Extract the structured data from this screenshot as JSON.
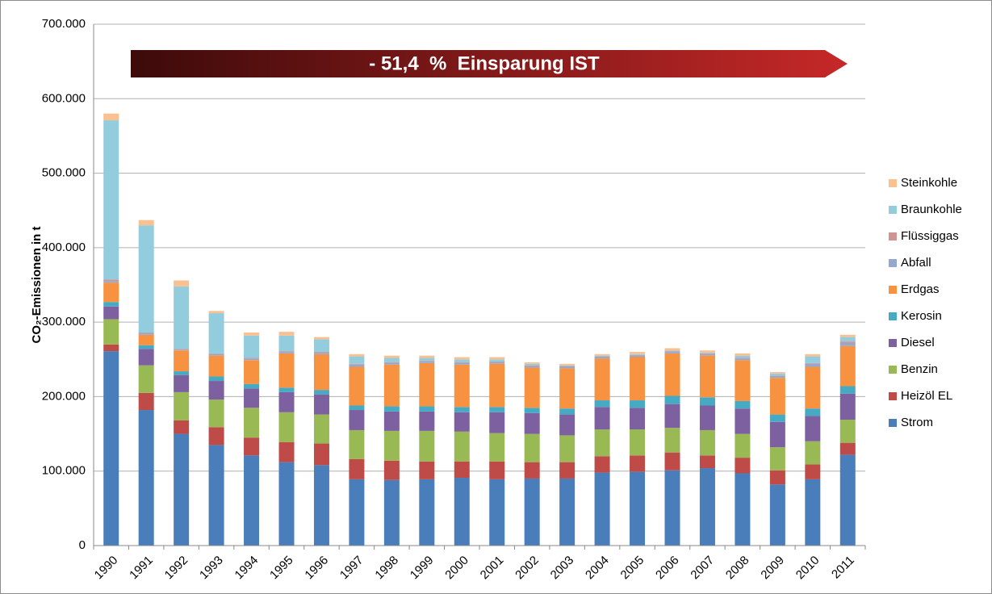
{
  "chart_data": {
    "type": "stacked_bar",
    "y_label": "CO₂-Emissionen in t",
    "annotation": "- 51,4  %  Einsparung IST",
    "categories": [
      "1990",
      "1991",
      "1992",
      "1993",
      "1994",
      "1995",
      "1996",
      "1997",
      "1998",
      "1999",
      "2000",
      "2001",
      "2002",
      "2003",
      "2004",
      "2005",
      "2006",
      "2007",
      "2008",
      "2009",
      "2010",
      "2011"
    ],
    "series": [
      {
        "name": "Strom",
        "color": "#4a7ebb",
        "values": [
          261000,
          182000,
          150000,
          135000,
          121000,
          112000,
          108000,
          89000,
          88000,
          89000,
          91000,
          89000,
          90000,
          90000,
          98000,
          99000,
          101000,
          104000,
          97000,
          82000,
          89000,
          122000
        ]
      },
      {
        "name": "Heizöl EL",
        "color": "#be4b48",
        "values": [
          9000,
          23000,
          18000,
          24000,
          24000,
          27000,
          29000,
          27000,
          26000,
          24000,
          22000,
          24000,
          22000,
          22000,
          22000,
          22000,
          24000,
          17000,
          21000,
          19000,
          20000,
          16000
        ]
      },
      {
        "name": "Benzin",
        "color": "#98b954",
        "values": [
          34000,
          37000,
          38000,
          37000,
          40000,
          40000,
          39000,
          39000,
          40000,
          41000,
          40000,
          38000,
          38000,
          36000,
          36000,
          35000,
          33000,
          34000,
          32000,
          31000,
          31000,
          31000
        ]
      },
      {
        "name": "Diesel",
        "color": "#7d60a0",
        "values": [
          17000,
          22000,
          23000,
          25000,
          26000,
          27000,
          27000,
          27000,
          26000,
          26000,
          26000,
          28000,
          28000,
          28000,
          30000,
          29000,
          32000,
          33000,
          34000,
          34000,
          34000,
          35000
        ]
      },
      {
        "name": "Kerosin",
        "color": "#46aac5",
        "values": [
          6000,
          5000,
          5000,
          6000,
          6000,
          6000,
          6000,
          6000,
          7000,
          7000,
          7000,
          7000,
          7000,
          8000,
          9000,
          10000,
          11000,
          11000,
          10000,
          10000,
          10000,
          10000
        ]
      },
      {
        "name": "Erdgas",
        "color": "#f69240",
        "values": [
          26000,
          14000,
          28000,
          28000,
          32000,
          46000,
          48000,
          52000,
          56000,
          58000,
          57000,
          58000,
          54000,
          54000,
          56000,
          58000,
          57000,
          56000,
          55000,
          49000,
          56000,
          54000
        ]
      },
      {
        "name": "Abfall",
        "color": "#93a9cf",
        "values": [
          2000,
          2000,
          1000,
          2000,
          2000,
          2000,
          2000,
          3000,
          2000,
          2000,
          2000,
          2000,
          2000,
          2000,
          2000,
          2000,
          2000,
          2000,
          2000,
          2000,
          4000,
          4000
        ]
      },
      {
        "name": "Flüssiggas",
        "color": "#d09493",
        "values": [
          2000,
          1000,
          1000,
          1000,
          1000,
          1000,
          1000,
          1000,
          1000,
          1000,
          1000,
          1000,
          1000,
          1000,
          1000,
          1000,
          1000,
          1000,
          1000,
          1000,
          1000,
          2000
        ]
      },
      {
        "name": "Braunkohle",
        "color": "#93cddd",
        "values": [
          214000,
          144000,
          84000,
          54000,
          30000,
          21000,
          17000,
          10000,
          6000,
          4000,
          4000,
          3000,
          2000,
          1000,
          1000,
          1000,
          1000,
          1000,
          3000,
          3000,
          9000,
          6000
        ]
      },
      {
        "name": "Steinkohle",
        "color": "#fac090",
        "values": [
          9000,
          7000,
          8000,
          3000,
          4000,
          5000,
          3000,
          3000,
          3000,
          3000,
          3000,
          3000,
          2000,
          2000,
          2000,
          3000,
          3000,
          3000,
          3000,
          2000,
          3000,
          3000
        ]
      }
    ],
    "ylim": [
      0,
      700000
    ],
    "yticks": [
      0,
      {
        "value": 100000,
        "label": "100.000"
      },
      {
        "value": 200000,
        "label": "200.000"
      },
      {
        "value": 300000,
        "label": "300.000"
      },
      {
        "value": 400000,
        "label": "400.000"
      },
      {
        "value": 500000,
        "label": "500.000"
      },
      {
        "value": 600000,
        "label": "600.000"
      },
      {
        "value": 700000,
        "label": "700.000"
      }
    ],
    "grid": true,
    "legend": "right"
  }
}
